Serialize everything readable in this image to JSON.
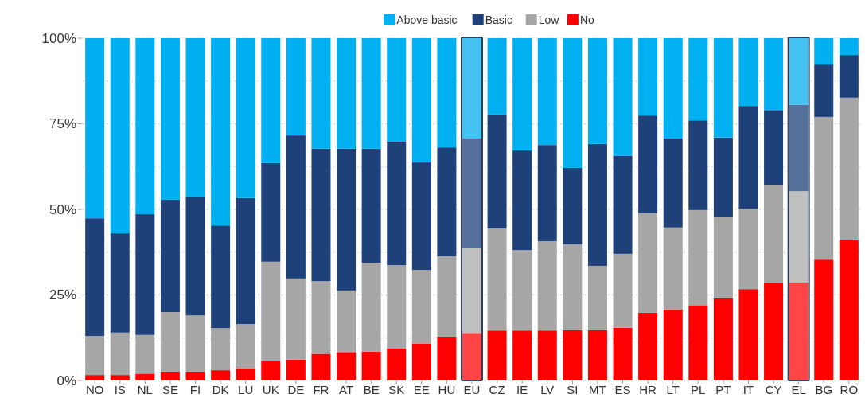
{
  "chart_data": {
    "type": "bar",
    "stacked": true,
    "legend": "top",
    "grid": "y",
    "categories": [
      "NO",
      "IS",
      "NL",
      "SE",
      "FI",
      "DK",
      "LU",
      "UK",
      "DE",
      "FR",
      "AT",
      "BE",
      "SK",
      "EE",
      "HU",
      "EU",
      "CZ",
      "IE",
      "LV",
      "SI",
      "MT",
      "ES",
      "HR",
      "LT",
      "PL",
      "PT",
      "IT",
      "CY",
      "EL",
      "BG",
      "RO"
    ],
    "ylim": [
      0,
      100
    ],
    "yticks": [
      {
        "value": 0,
        "label": "0%"
      },
      {
        "value": 12.5,
        "label": null
      },
      {
        "value": 25,
        "label": "25%"
      },
      {
        "value": 37.5,
        "label": null
      },
      {
        "value": 50,
        "label": "50%"
      },
      {
        "value": 62.5,
        "label": null
      },
      {
        "value": 75,
        "label": "75%"
      },
      {
        "value": 87.5,
        "label": null
      },
      {
        "value": 100,
        "label": "100%"
      }
    ],
    "series": [
      {
        "name": "No",
        "color": "#ff0000",
        "colors": [
          "#ff0000",
          "#ff0000",
          "#ff0000",
          "#ff0000",
          "#ff0000",
          "#ff0000",
          "#ff0000",
          "#ff0000",
          "#ff0000",
          "#ff0000",
          "#ff0000",
          "#ff0000",
          "#ff0000",
          "#ff0000",
          "#ff0000",
          "#ff4545",
          "#ff0000",
          "#ff0000",
          "#ff0000",
          "#ff0000",
          "#ff0000",
          "#ff0000",
          "#ff0000",
          "#ff0000",
          "#ff0000",
          "#ff0000",
          "#ff0000",
          "#ff0000",
          "#ff4545",
          "#ff0000",
          "#ff0000"
        ],
        "values": [
          1.6,
          1.6,
          2,
          2.6,
          2.6,
          3,
          3.6,
          5.6,
          6.1,
          7.8,
          8.3,
          8.4,
          9.3,
          10.8,
          12.8,
          13.9,
          14.6,
          14.6,
          14.6,
          14.7,
          14.7,
          15.4,
          19.8,
          20.8,
          22,
          24,
          26.7,
          28.4,
          28.6,
          35.3,
          41
        ]
      },
      {
        "name": "Low",
        "color": "#a6a6a6",
        "colors": [
          "#a6a6a6",
          "#a6a6a6",
          "#a6a6a6",
          "#a6a6a6",
          "#a6a6a6",
          "#a6a6a6",
          "#a6a6a6",
          "#a6a6a6",
          "#a6a6a6",
          "#a6a6a6",
          "#a6a6a6",
          "#a6a6a6",
          "#a6a6a6",
          "#a6a6a6",
          "#a6a6a6",
          "#bfbfbf",
          "#a6a6a6",
          "#a6a6a6",
          "#a6a6a6",
          "#a6a6a6",
          "#a6a6a6",
          "#a6a6a6",
          "#a6a6a6",
          "#a6a6a6",
          "#a6a6a6",
          "#a6a6a6",
          "#a6a6a6",
          "#a6a6a6",
          "#bfbfbf",
          "#a6a6a6",
          "#a6a6a6"
        ],
        "values": [
          11.4,
          12.4,
          11.3,
          17.4,
          16.4,
          12.3,
          12.9,
          29.1,
          23.7,
          21.2,
          18,
          26,
          24.4,
          21.5,
          23.5,
          24.7,
          29.8,
          23.5,
          26.1,
          25.1,
          18.8,
          21.6,
          29,
          23.9,
          27.8,
          23.9,
          23.5,
          28.8,
          26.7,
          41.7,
          41.6
        ]
      },
      {
        "name": "Basic",
        "color": "#1f4179",
        "colors": [
          "#1f4179",
          "#1f4179",
          "#1f4179",
          "#1f4179",
          "#1f4179",
          "#1f4179",
          "#1f4179",
          "#1f4179",
          "#1f4179",
          "#1f4179",
          "#1f4179",
          "#1f4179",
          "#1f4179",
          "#1f4179",
          "#1f4179",
          "#56709c",
          "#1f4179",
          "#1f4179",
          "#1f4179",
          "#1f4179",
          "#1f4179",
          "#1f4179",
          "#1f4179",
          "#1f4179",
          "#1f4179",
          "#1f4179",
          "#1f4179",
          "#1f4179",
          "#56709c",
          "#1f4179",
          "#1f4179"
        ],
        "values": [
          34.4,
          29,
          35.3,
          32.8,
          34.5,
          30,
          36.8,
          28.8,
          41.8,
          38.7,
          41.4,
          33.3,
          36.1,
          31.4,
          31.8,
          32.1,
          33.3,
          29.1,
          28.1,
          22.3,
          35.6,
          28.6,
          28.6,
          26,
          26.2,
          23.1,
          30,
          21.8,
          25.2,
          15.3,
          12.5
        ]
      },
      {
        "name": "Above basic",
        "color": "#00b0f0",
        "colors": [
          "#00b0f0",
          "#00b0f0",
          "#00b0f0",
          "#00b0f0",
          "#00b0f0",
          "#00b0f0",
          "#00b0f0",
          "#00b0f0",
          "#00b0f0",
          "#00b0f0",
          "#00b0f0",
          "#00b0f0",
          "#00b0f0",
          "#00b0f0",
          "#00b0f0",
          "#45c2f2",
          "#00b0f0",
          "#00b0f0",
          "#00b0f0",
          "#00b0f0",
          "#00b0f0",
          "#00b0f0",
          "#00b0f0",
          "#00b0f0",
          "#00b0f0",
          "#00b0f0",
          "#00b0f0",
          "#00b0f0",
          "#45c2f2",
          "#00b0f0",
          "#00b0f0"
        ],
        "values": [
          52.6,
          57,
          51.4,
          47.2,
          46.5,
          54.7,
          46.7,
          36.5,
          28.4,
          32.3,
          32.3,
          32.3,
          30.2,
          36.3,
          31.9,
          29.3,
          22.3,
          32.8,
          31.2,
          37.9,
          30.9,
          34.4,
          22.6,
          29.3,
          24,
          29,
          19.8,
          21,
          19.5,
          7.7,
          4.9
        ]
      }
    ]
  }
}
